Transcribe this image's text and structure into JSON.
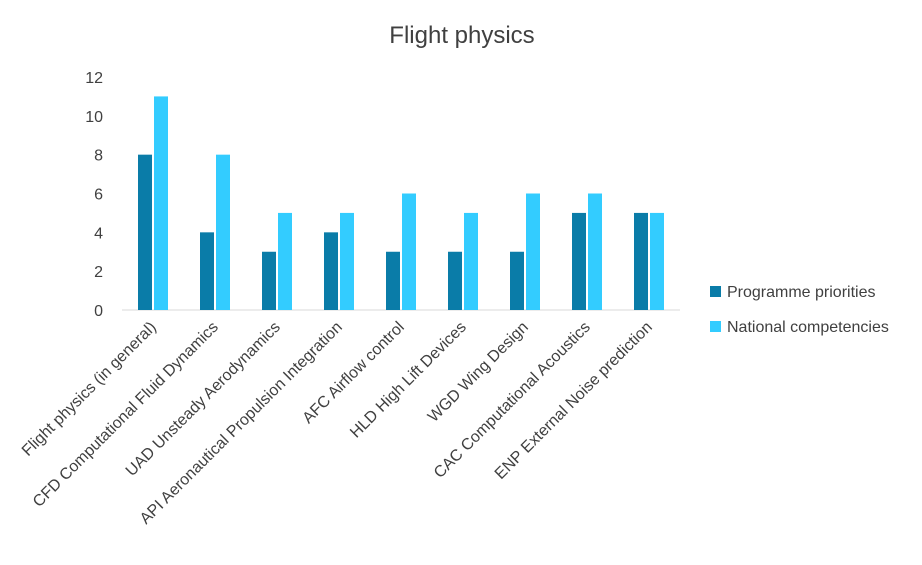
{
  "chart_data": {
    "type": "bar",
    "title": "Flight physics",
    "xlabel": "",
    "ylabel": "",
    "ylim": [
      0,
      12
    ],
    "y_ticks": [
      0,
      2,
      4,
      6,
      8,
      10,
      12
    ],
    "grid": false,
    "legend_position": "right",
    "categories": [
      "Flight physics (in general)",
      "CFD Computational Fluid Dynamics",
      "UAD Unsteady Aerodynamics",
      "API Aeronautical Propulsion Integration",
      "AFC Airflow control",
      "HLD High Lift Devices",
      "WGD Wing Design",
      "CAC Computational Acoustics",
      "ENP External Noise prediction"
    ],
    "series": [
      {
        "name": "Programme priorities",
        "color": "#0a7ca8",
        "values": [
          8,
          4,
          3,
          4,
          3,
          3,
          3,
          5,
          5
        ]
      },
      {
        "name": "National competencies",
        "color": "#33ccff",
        "values": [
          11,
          8,
          5,
          5,
          6,
          5,
          6,
          6,
          5
        ]
      }
    ]
  }
}
